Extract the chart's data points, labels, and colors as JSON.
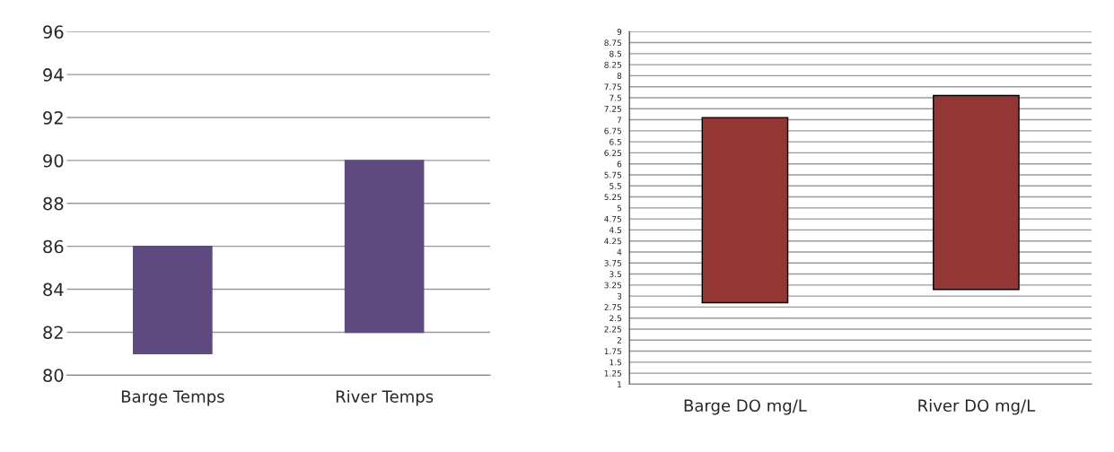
{
  "chart_data": [
    {
      "type": "bar",
      "categories": [
        "Barge Temps",
        "River Temps"
      ],
      "base": [
        81,
        82
      ],
      "values": [
        5,
        8
      ],
      "color": "#5f4a7f",
      "ylim": [
        80,
        96
      ],
      "yticks": [
        80,
        82,
        84,
        86,
        88,
        90,
        92,
        94,
        96
      ],
      "grid": "y"
    },
    {
      "type": "bar",
      "categories": [
        "Barge DO mg/L",
        "River DO mg/L"
      ],
      "base": [
        2.85,
        3.15
      ],
      "values": [
        4.2,
        4.4
      ],
      "color": "#943634",
      "ylim": [
        1,
        9
      ],
      "yticks": [
        1,
        1.25,
        1.5,
        1.75,
        2,
        2.25,
        2.5,
        2.75,
        3,
        3.25,
        3.5,
        3.75,
        4,
        4.25,
        4.5,
        4.75,
        5,
        5.25,
        5.5,
        5.75,
        6,
        6.25,
        6.5,
        6.75,
        7,
        7.25,
        7.5,
        7.75,
        8,
        8.25,
        8.5,
        8.75,
        9
      ],
      "grid": "y"
    }
  ]
}
